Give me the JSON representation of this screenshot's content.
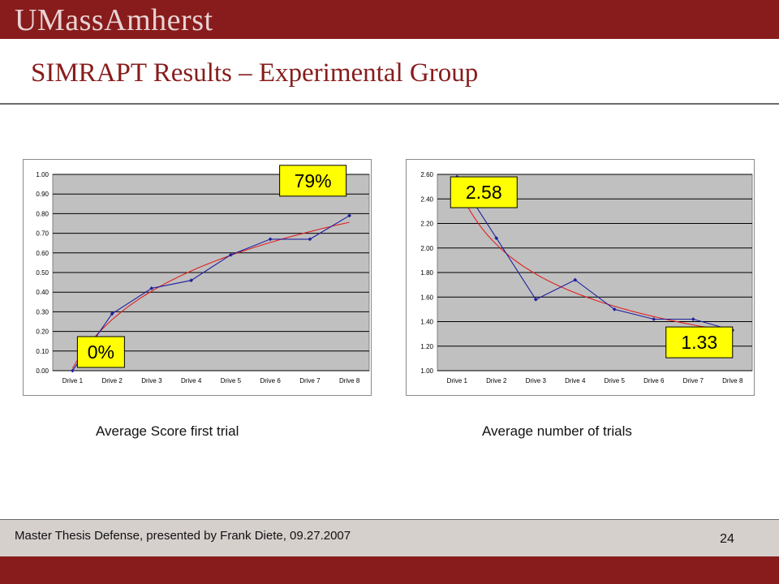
{
  "header": {
    "brand": "UMassAmherst",
    "title": "SIMRAPT Results – Experimental Group"
  },
  "colors": {
    "brand": "#881c1c",
    "plot_area": "#c0c0c0",
    "series": "#1f1fa0",
    "trend": "#e02020",
    "callout": "#ffff00",
    "footer": "#d6d0cd"
  },
  "chart_data": [
    {
      "type": "line",
      "caption": "Average Score first trial",
      "categories": [
        "Drive 1",
        "Drive 2",
        "Drive 3",
        "Drive 4",
        "Drive 5",
        "Drive 6",
        "Drive 7",
        "Drive 8"
      ],
      "series": [
        {
          "values": [
            0.0,
            0.29,
            0.42,
            0.46,
            0.59,
            0.67,
            0.67,
            0.79
          ]
        }
      ],
      "trendline": "logarithmic",
      "ylim": [
        0,
        1
      ],
      "yticks": [
        "0.00",
        "0.10",
        "0.20",
        "0.30",
        "0.40",
        "0.50",
        "0.60",
        "0.70",
        "0.80",
        "0.90",
        "1.00"
      ],
      "grid": true,
      "annotations": [
        {
          "text": "0%",
          "index": 0
        },
        {
          "text": "79%",
          "index": 7
        }
      ]
    },
    {
      "type": "line",
      "caption": "Average number of trials",
      "categories": [
        "Drive 1",
        "Drive 2",
        "Drive 3",
        "Drive 4",
        "Drive 5",
        "Drive 6",
        "Drive 7",
        "Drive 8"
      ],
      "series": [
        {
          "values": [
            2.58,
            2.08,
            1.58,
            1.74,
            1.5,
            1.42,
            1.42,
            1.33
          ]
        }
      ],
      "trendline": "power",
      "ylim": [
        1,
        2.6
      ],
      "yticks": [
        "1.00",
        "1.20",
        "1.40",
        "1.60",
        "1.80",
        "2.00",
        "2.20",
        "2.40",
        "2.60"
      ],
      "grid": true,
      "annotations": [
        {
          "text": "2.58",
          "index": 0
        },
        {
          "text": "1.33",
          "index": 7
        }
      ]
    }
  ],
  "footer": {
    "text": "Master Thesis Defense, presented by Frank Diete, 09.27.2007",
    "page": "24"
  }
}
